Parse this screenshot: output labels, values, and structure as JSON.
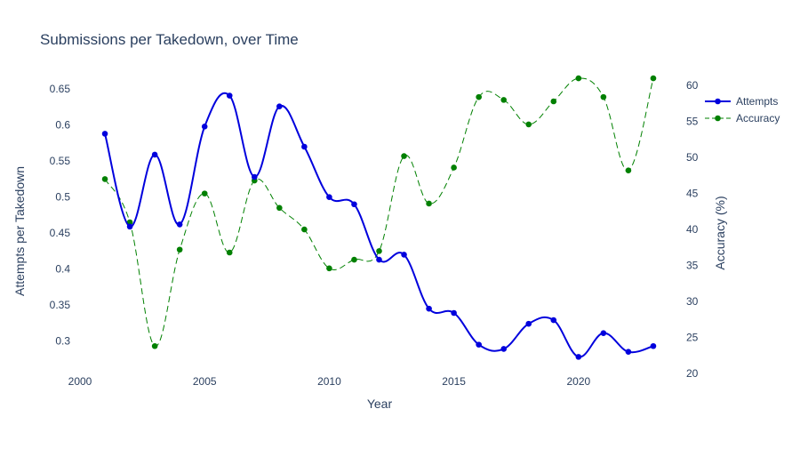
{
  "chart_data": {
    "type": "line",
    "title": "Submissions per Takedown, over Time",
    "xlabel": "Year",
    "ylabel": "Attempts per Takedown",
    "y2label": "Accuracy (%)",
    "xlim": [
      2000,
      2024
    ],
    "ylim": [
      0.255,
      0.675
    ],
    "y2lim": [
      20,
      62
    ],
    "x_ticks": [
      2000,
      2005,
      2010,
      2015,
      2020
    ],
    "y_ticks": [
      0.3,
      0.35,
      0.4,
      0.45,
      0.5,
      0.55,
      0.6,
      0.65
    ],
    "y_tick_labels": [
      "0.3",
      "0.35",
      "0.4",
      "0.45",
      "0.5",
      "0.55",
      "0.6",
      "0.65"
    ],
    "y2_ticks": [
      20,
      25,
      30,
      35,
      40,
      45,
      50,
      55,
      60
    ],
    "grid": false,
    "legend_position": "top-right",
    "x": [
      2001,
      2002,
      2003,
      2004,
      2005,
      2006,
      2007,
      2008,
      2009,
      2010,
      2011,
      2012,
      2013,
      2014,
      2015,
      2016,
      2017,
      2018,
      2019,
      2020,
      2021,
      2022,
      2023
    ],
    "series": [
      {
        "name": "Attempts",
        "axis": "left",
        "color": "#0000dd",
        "line_style": "solid",
        "values": [
          0.588,
          0.459,
          0.559,
          0.462,
          0.598,
          0.641,
          0.528,
          0.626,
          0.57,
          0.5,
          0.49,
          0.413,
          0.42,
          0.345,
          0.339,
          0.295,
          0.289,
          0.324,
          0.329,
          0.278,
          0.311,
          0.285,
          0.293
        ]
      },
      {
        "name": "Accuracy",
        "axis": "right",
        "color": "#008000",
        "line_style": "dash",
        "values": [
          47.0,
          41.0,
          23.8,
          37.2,
          45.0,
          36.8,
          46.8,
          43.0,
          40.0,
          34.6,
          35.8,
          37.0,
          50.2,
          43.6,
          48.6,
          58.4,
          58.0,
          54.6,
          57.8,
          61.0,
          58.4,
          48.2,
          61.0
        ]
      }
    ]
  }
}
